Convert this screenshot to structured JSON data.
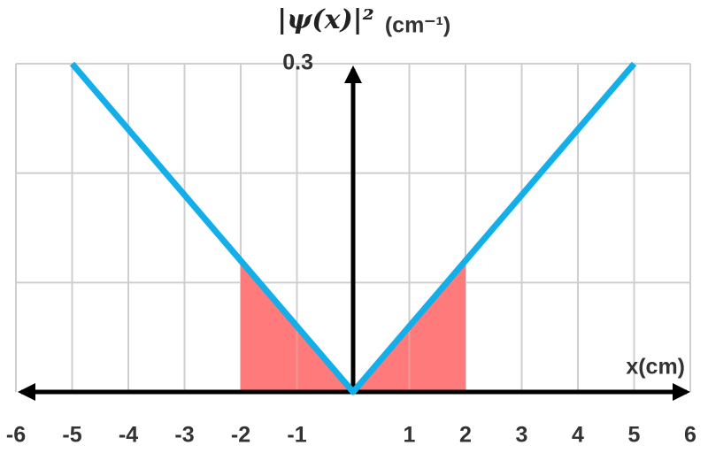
{
  "chart_data": {
    "type": "line",
    "y_label": "|ψ(x)|²",
    "y_unit": "(cm⁻¹)",
    "x_label": "x(cm)",
    "x": [
      -5,
      0,
      5
    ],
    "series": [
      {
        "name": "|ψ(x)|²",
        "color": "#14aee8",
        "values": [
          0.3,
          0,
          0.3
        ]
      }
    ],
    "shaded_x": [
      -2,
      2
    ],
    "shade_color": "#ff7b7b",
    "xlim": [
      -6,
      6
    ],
    "xticks": [
      -6,
      -5,
      -4,
      -3,
      -2,
      -1,
      1,
      2,
      3,
      4,
      5,
      6
    ],
    "ylim": [
      0,
      0.3
    ],
    "yticks": [
      0.3
    ],
    "ygrid": [
      0.1,
      0.2,
      0.3
    ],
    "grid": true
  }
}
